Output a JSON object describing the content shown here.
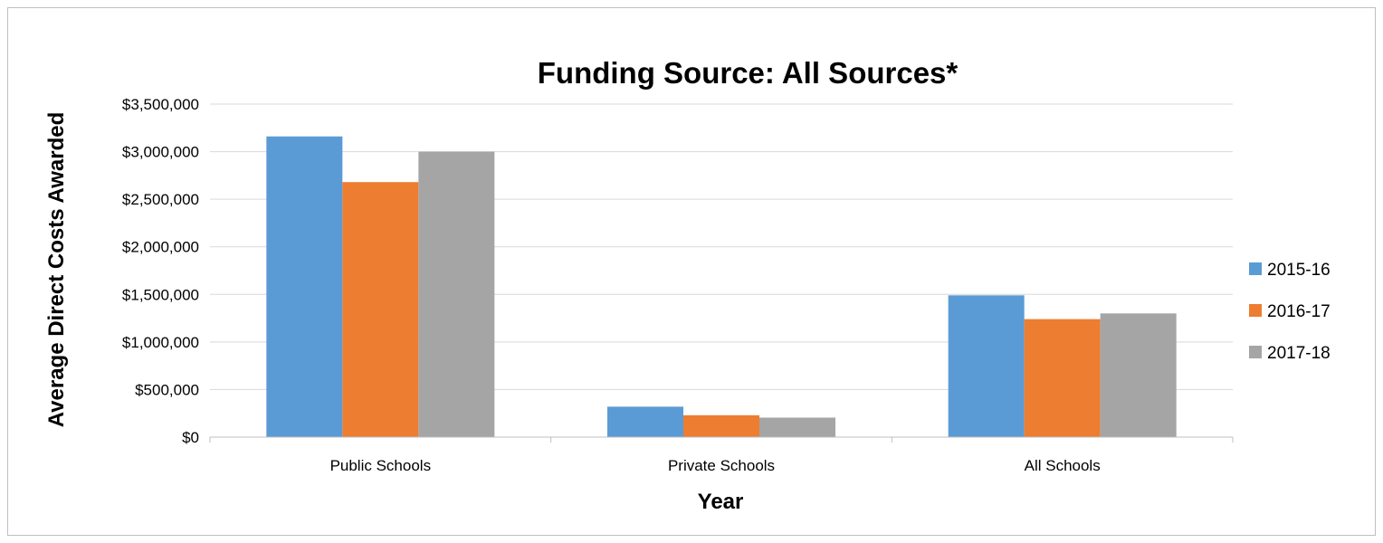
{
  "chart_data": {
    "type": "bar",
    "title": "Funding Source: All Sources*",
    "xlabel": "Year",
    "ylabel": "Average Direct Costs Awarded",
    "categories": [
      "Public Schools",
      "Private Schools",
      "All Schools"
    ],
    "series": [
      {
        "name": "2015-16",
        "color": "#5b9bd5",
        "values": [
          3160000,
          320000,
          1490000
        ]
      },
      {
        "name": "2016-17",
        "color": "#ed7d31",
        "values": [
          2680000,
          230000,
          1240000
        ]
      },
      {
        "name": "2017-18",
        "color": "#a5a5a5",
        "values": [
          3000000,
          205000,
          1300000
        ]
      }
    ],
    "ylim": [
      0,
      3500000
    ],
    "yticks": [
      0,
      500000,
      1000000,
      1500000,
      2000000,
      2500000,
      3000000,
      3500000
    ],
    "ytick_labels": [
      "$0",
      "$500,000",
      "$1,000,000",
      "$1,500,000",
      "$2,000,000",
      "$2,500,000",
      "$3,000,000",
      "$3,500,000"
    ],
    "grid": true,
    "legend_position": "right"
  }
}
